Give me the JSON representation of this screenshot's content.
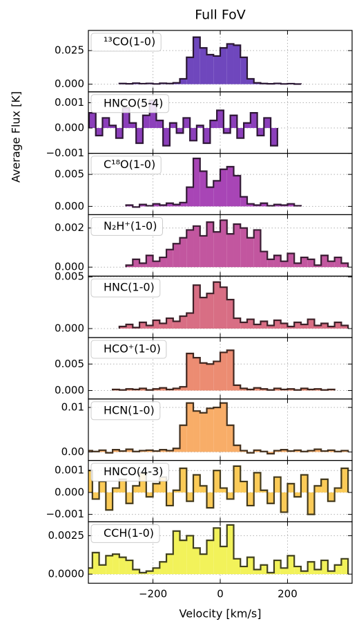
{
  "figure": {
    "title": "Full FoV",
    "x_label": "Velocity [km/s]",
    "y_label": "Average Flux [K]",
    "xlim": [
      -392,
      392
    ],
    "xticks": [
      {
        "value": -200,
        "label": "−200"
      },
      0,
      200
    ]
  },
  "chart_data": [
    {
      "type": "step",
      "label": "¹³CO(1-0)",
      "color": "#6f47bd",
      "edgecolor": "#2a1733",
      "grid": true,
      "ylim": [
        -0.0057,
        0.04
      ],
      "yticks": [
        {
          "value": 0,
          "label": "0.000"
        },
        {
          "value": 0.025,
          "label": "0.025"
        }
      ],
      "x": [
        -290,
        -270,
        -250,
        -230,
        -210,
        -190,
        -170,
        -150,
        -130,
        -110,
        -90,
        -70,
        -50,
        -30,
        -10,
        10,
        30,
        50,
        70,
        90,
        110,
        130,
        150,
        170,
        190,
        210,
        230
      ],
      "values": [
        0.0005,
        0.0003,
        0.0008,
        0.0004,
        0.0006,
        0.0002,
        0.0007,
        0.0005,
        0.001,
        0.004,
        0.02,
        0.035,
        0.027,
        0.022,
        0.021,
        0.027,
        0.03,
        0.029,
        0.02,
        0.004,
        0.001,
        0.0005,
        0.0003,
        0.0006,
        0.0002,
        0.0004,
        0.0001
      ]
    },
    {
      "type": "step",
      "label": "HNCO(5-4)",
      "color": "#8c3fbb",
      "edgecolor": "#2e1736",
      "grid": true,
      "ylim": [
        -0.001,
        0.00143
      ],
      "yticks": [
        {
          "value": -0.001,
          "label": "−0.001"
        },
        {
          "value": 0,
          "label": "0.000"
        },
        0.001
      ],
      "x": [
        -380,
        -360,
        -340,
        -320,
        -300,
        -280,
        -260,
        -240,
        -220,
        -200,
        -180,
        -160,
        -140,
        -120,
        -100,
        -80,
        -60,
        -40,
        -20,
        0,
        20,
        40,
        60,
        80,
        100,
        120,
        140,
        160
      ],
      "values": [
        0.0006,
        -0.0003,
        0.0004,
        0.0001,
        -0.0004,
        0.0008,
        0.0002,
        -0.0006,
        0.0005,
        0.0011,
        0.0003,
        -0.0007,
        0.0002,
        -0.0002,
        0.0004,
        -0.0005,
        0.0001,
        -0.0006,
        0.0003,
        0.0007,
        -0.0002,
        0.0005,
        -0.0004,
        0.0002,
        0.0006,
        -0.0003,
        0.0004,
        -0.0007
      ]
    },
    {
      "type": "step",
      "label": "C¹⁸O(1-0)",
      "color": "#a845b6",
      "edgecolor": "#331a36",
      "grid": true,
      "ylim": [
        -0.0013,
        0.0083
      ],
      "yticks": [
        {
          "value": 0,
          "label": "0.000"
        },
        {
          "value": 0.005,
          "label": "0.005"
        }
      ],
      "x": [
        -270,
        -250,
        -230,
        -210,
        -190,
        -170,
        -150,
        -130,
        -110,
        -90,
        -70,
        -50,
        -30,
        -10,
        10,
        30,
        50,
        70,
        90,
        110,
        130,
        150,
        170,
        190,
        210,
        230
      ],
      "values": [
        0.0002,
        -0.0001,
        0.0003,
        0.0001,
        0.0004,
        0.0002,
        0.0005,
        0.0003,
        0.0006,
        0.003,
        0.0075,
        0.0055,
        0.003,
        0.004,
        0.0058,
        0.0062,
        0.0048,
        0.0015,
        0.0004,
        0.0002,
        0.0005,
        0.0001,
        0.0003,
        0.0002,
        0.0004,
        0.0001
      ]
    },
    {
      "type": "step",
      "label": "N₂H⁺(1-0)",
      "color": "#c2569f",
      "edgecolor": "#3a1d33",
      "grid": true,
      "ylim": [
        -0.00046,
        0.00268
      ],
      "yticks": [
        {
          "value": 0,
          "label": "0.000"
        },
        {
          "value": 0.002,
          "label": "0.002"
        }
      ],
      "x": [
        -270,
        -250,
        -230,
        -210,
        -190,
        -170,
        -150,
        -130,
        -110,
        -90,
        -70,
        -50,
        -30,
        -10,
        10,
        30,
        50,
        70,
        90,
        110,
        130,
        150,
        170,
        190,
        210,
        230,
        250,
        270,
        290,
        310,
        330,
        350,
        370
      ],
      "values": [
        0.0001,
        0.0004,
        0.0002,
        0.0006,
        0.0003,
        0.0005,
        0.0009,
        0.0012,
        0.0015,
        0.0019,
        0.0021,
        0.0016,
        0.0023,
        0.0018,
        0.0024,
        0.0017,
        0.0022,
        0.002,
        0.0015,
        0.0019,
        0.0008,
        0.0004,
        0.0006,
        0.0003,
        0.0007,
        0.0002,
        0.0005,
        0.0004,
        0.0001,
        0.0006,
        0.0003,
        0.0005,
        0.0002
      ]
    },
    {
      "type": "step",
      "label": "HNC(1-0)",
      "color": "#d86e84",
      "edgecolor": "#3d2028",
      "grid": true,
      "ylim": [
        -0.00087,
        0.00507
      ],
      "yticks": [
        {
          "value": 0,
          "label": "0.000"
        },
        {
          "value": 0.005,
          "label": "0.005"
        }
      ],
      "x": [
        -290,
        -270,
        -250,
        -230,
        -210,
        -190,
        -170,
        -150,
        -130,
        -110,
        -90,
        -70,
        -50,
        -30,
        -10,
        10,
        30,
        50,
        70,
        90,
        110,
        130,
        150,
        170,
        190,
        210,
        230,
        250,
        270,
        290,
        310,
        330,
        350,
        370
      ],
      "values": [
        0.0002,
        0.0004,
        0.0001,
        0.0006,
        0.0003,
        0.0008,
        0.0005,
        0.001,
        0.0007,
        0.0012,
        0.0015,
        0.0042,
        0.003,
        0.0034,
        0.0045,
        0.004,
        0.0028,
        0.001,
        0.0006,
        0.0009,
        0.0004,
        0.0007,
        0.0003,
        0.0008,
        0.0005,
        0.0002,
        0.0006,
        0.0004,
        0.0009,
        0.0003,
        0.0005,
        0.0002,
        0.0006,
        0.0003
      ]
    },
    {
      "type": "step",
      "label": "HCO⁺(1-0)",
      "color": "#ec8c72",
      "edgecolor": "#40261f",
      "grid": true,
      "ylim": [
        -0.0016,
        0.01
      ],
      "yticks": [
        {
          "value": 0,
          "label": "0.000"
        },
        {
          "value": 0.005,
          "label": "0.005"
        }
      ],
      "x": [
        -310,
        -290,
        -270,
        -250,
        -230,
        -210,
        -190,
        -170,
        -150,
        -130,
        -110,
        -90,
        -70,
        -50,
        -30,
        -10,
        10,
        30,
        50,
        70,
        90,
        110,
        130,
        150,
        170,
        190,
        210,
        230,
        250,
        270,
        290,
        310,
        330
      ],
      "values": [
        0.0002,
        0.0001,
        0.0003,
        0.0002,
        0.0004,
        0.0001,
        0.0003,
        0.0005,
        0.0002,
        0.0004,
        0.0007,
        0.007,
        0.0062,
        0.0052,
        0.005,
        0.0055,
        0.0072,
        0.0076,
        0.001,
        0.0004,
        0.0002,
        0.0005,
        0.0003,
        0.0001,
        0.0004,
        0.0002,
        0.0003,
        0.0001,
        0.0004,
        0.0002,
        0.0003,
        0.0001,
        0.0002
      ]
    },
    {
      "type": "step",
      "label": "HCN(1-0)",
      "color": "#f8ad68",
      "edgecolor": "#42301e",
      "grid": true,
      "ylim": [
        -0.0019,
        0.0119
      ],
      "yticks": [
        {
          "value": 0,
          "label": "0.00"
        },
        {
          "value": 0.01,
          "label": "0.01"
        }
      ],
      "x": [
        -390,
        -370,
        -350,
        -330,
        -310,
        -290,
        -270,
        -250,
        -230,
        -210,
        -190,
        -170,
        -150,
        -130,
        -110,
        -90,
        -70,
        -50,
        -30,
        -10,
        10,
        30,
        50,
        70,
        90,
        110,
        130,
        150,
        170,
        190,
        210,
        230,
        250,
        270,
        290,
        310,
        330,
        350,
        370
      ],
      "values": [
        0.0003,
        0.0001,
        0.0004,
        -0.0002,
        0.0005,
        0.0002,
        0.0006,
        0.0001,
        0.0003,
        0.0004,
        0.0002,
        0.0005,
        0.0003,
        0.0008,
        0.006,
        0.011,
        0.0092,
        0.0088,
        0.0098,
        0.01,
        0.011,
        0.006,
        0.0015,
        0.0003,
        -0.0002,
        0.0004,
        0.0001,
        -0.0004,
        0.0003,
        0.0005,
        0.0002,
        0.0004,
        0.0001,
        0.0003,
        0.0006,
        0.0002,
        0.0004,
        0.0001,
        0.0003
      ]
    },
    {
      "type": "step",
      "label": "HNCO(4-3)",
      "color": "#fbcb58",
      "edgecolor": "#433a1d",
      "grid": true,
      "ylim": [
        -0.00134,
        0.00146
      ],
      "yticks": [
        {
          "value": -0.001,
          "label": "−0.001"
        },
        {
          "value": 0,
          "label": "0.000"
        },
        {
          "value": 0.001,
          "label": "0.001"
        }
      ],
      "x": [
        -390,
        -370,
        -350,
        -330,
        -310,
        -290,
        -270,
        -250,
        -230,
        -210,
        -190,
        -170,
        -150,
        -130,
        -110,
        -90,
        -70,
        -50,
        -30,
        -10,
        10,
        30,
        50,
        70,
        90,
        110,
        130,
        150,
        170,
        190,
        210,
        230,
        250,
        270,
        290,
        310,
        330,
        350,
        370
      ],
      "values": [
        0.001,
        -0.0003,
        0.0005,
        -0.0008,
        0.0002,
        0.0006,
        -0.0005,
        0.0003,
        0.0009,
        -0.0002,
        0.0004,
        0.0007,
        -0.0006,
        0.0001,
        0.0011,
        -0.0004,
        0.0008,
        0.0003,
        -0.0007,
        0.001,
        0.0002,
        -0.0003,
        0.0012,
        0.0005,
        -0.0006,
        0.0009,
        0.0001,
        -0.0005,
        0.0007,
        -0.0009,
        0.0004,
        -0.0002,
        0.0008,
        -0.001,
        0.0003,
        0.0006,
        -0.0004,
        0.0002,
        0.0011
      ]
    },
    {
      "type": "step",
      "label": "CCH(1-0)",
      "color": "#f2f25a",
      "edgecolor": "#40401f",
      "grid": true,
      "ylim": [
        -0.00059,
        0.0034
      ],
      "yticks": [
        {
          "value": 0,
          "label": "0.0000"
        },
        {
          "value": 0.0025,
          "label": "0.0025"
        }
      ],
      "x": [
        -390,
        -370,
        -350,
        -330,
        -310,
        -290,
        -270,
        -250,
        -230,
        -210,
        -190,
        -170,
        -150,
        -130,
        -110,
        -90,
        -70,
        -50,
        -30,
        -10,
        10,
        30,
        50,
        70,
        90,
        110,
        130,
        150,
        170,
        190,
        210,
        230,
        250,
        270,
        290,
        310,
        330,
        350,
        370
      ],
      "values": [
        0.0004,
        0.0014,
        0.0006,
        0.0012,
        0.0013,
        0.0011,
        0.0009,
        0.0003,
        0.0001,
        0.0002,
        0.0004,
        0.0008,
        0.0013,
        0.0028,
        0.0022,
        0.0025,
        0.0017,
        0.0013,
        0.0022,
        0.003,
        0.0018,
        0.0032,
        0.001,
        0.0005,
        0.0011,
        0.0003,
        0.0006,
        0.0001,
        0.0009,
        0.0004,
        0.0012,
        0.0005,
        0.0002,
        0.0008,
        0.0003,
        0.0009,
        0.0002,
        0.0006,
        0.001
      ]
    }
  ]
}
